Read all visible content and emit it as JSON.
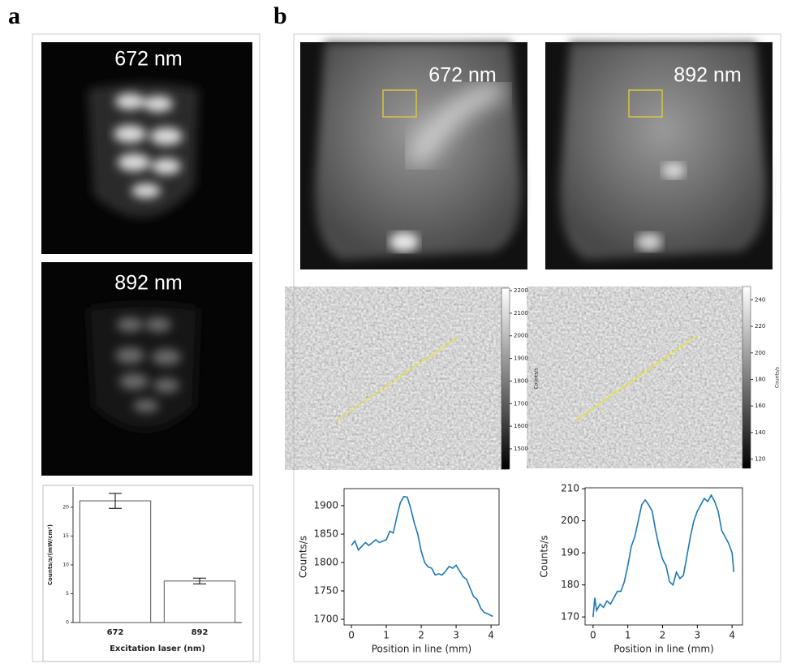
{
  "figure": {
    "panel_a": "a",
    "panel_b": "b",
    "image_labels": [
      "672 nm",
      "892 nm"
    ]
  },
  "chart_data": [
    {
      "type": "bar",
      "categories": [
        "672",
        "892"
      ],
      "values": [
        21.1,
        7.2
      ],
      "errors": [
        1.3,
        0.5
      ],
      "color": "#ffffff",
      "xlabel": "Excitation laser (nm)",
      "ylabel": "Counts/s/(mW/cm²)",
      "ylim": [
        0,
        23.5
      ],
      "yticks": [
        0,
        5,
        10,
        15,
        20
      ]
    },
    {
      "type": "colorbar",
      "label": "Counts/s",
      "ylim": [
        1410,
        2211
      ],
      "yticks": [
        1500,
        1600,
        1700,
        1800,
        1900,
        2000,
        2100,
        2200
      ]
    },
    {
      "type": "colorbar",
      "label": "Counts/s",
      "ylim": [
        113,
        250
      ],
      "yticks": [
        120,
        140,
        160,
        180,
        200,
        220,
        240
      ]
    },
    {
      "type": "line",
      "xlabel": "Position in line (mm)",
      "ylabel": "Counts/s",
      "xlim": [
        -0.21,
        4.23
      ],
      "ylim": [
        1690,
        1930
      ],
      "xticks": [
        0,
        1,
        2,
        3,
        4
      ],
      "yticks": [
        1700,
        1750,
        1800,
        1850,
        1900
      ],
      "x": [
        0,
        0.1,
        0.2,
        0.4,
        0.5,
        0.7,
        0.8,
        1.0,
        1.1,
        1.2,
        1.3,
        1.4,
        1.5,
        1.6,
        1.7,
        1.8,
        1.9,
        2.0,
        2.1,
        2.2,
        2.3,
        2.4,
        2.5,
        2.6,
        2.7,
        2.8,
        2.9,
        3.0,
        3.1,
        3.2,
        3.3,
        3.4,
        3.5,
        3.6,
        3.7,
        3.8,
        3.9,
        4.05
      ],
      "series": [
        {
          "color": "#1f77b4",
          "values": [
            1830,
            1838,
            1822,
            1835,
            1830,
            1840,
            1835,
            1840,
            1855,
            1852,
            1880,
            1905,
            1916,
            1915,
            1895,
            1870,
            1850,
            1820,
            1800,
            1792,
            1790,
            1778,
            1780,
            1778,
            1785,
            1793,
            1790,
            1795,
            1785,
            1775,
            1770,
            1755,
            1740,
            1735,
            1720,
            1712,
            1710,
            1705
          ]
        }
      ]
    },
    {
      "type": "line",
      "xlabel": "Position in line (mm)",
      "ylabel": "Counts/s",
      "xlim": [
        -0.23,
        4.3
      ],
      "ylim": [
        167.5,
        210.3
      ],
      "xticks": [
        0,
        1,
        2,
        3,
        4
      ],
      "yticks": [
        170,
        180,
        190,
        200,
        210
      ],
      "x": [
        0,
        0.05,
        0.1,
        0.2,
        0.3,
        0.4,
        0.5,
        0.6,
        0.7,
        0.8,
        0.9,
        1.0,
        1.1,
        1.2,
        1.3,
        1.4,
        1.5,
        1.6,
        1.7,
        1.8,
        1.9,
        2.0,
        2.1,
        2.2,
        2.3,
        2.4,
        2.5,
        2.6,
        2.7,
        2.8,
        2.9,
        3.0,
        3.1,
        3.2,
        3.3,
        3.4,
        3.5,
        3.6,
        3.7,
        3.8,
        3.9,
        4.0,
        4.05
      ],
      "series": [
        {
          "color": "#1f77b4",
          "values": [
            170,
            176,
            172,
            174,
            173,
            175,
            174,
            176,
            178,
            178,
            181,
            186,
            192,
            195,
            200,
            205,
            206.5,
            205,
            203,
            197,
            192,
            188,
            186,
            181,
            180,
            184,
            182,
            183,
            189,
            195,
            200,
            203,
            205,
            207,
            206,
            208,
            206,
            203,
            197,
            195,
            193,
            190,
            184
          ]
        }
      ]
    }
  ]
}
